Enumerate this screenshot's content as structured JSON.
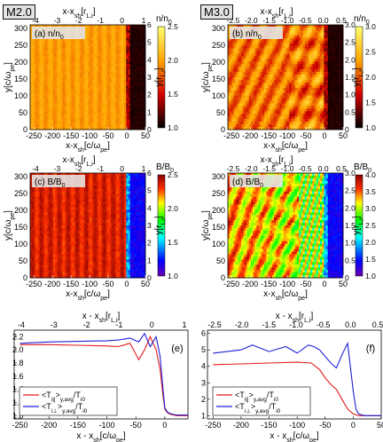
{
  "run_labels": [
    "M2.0",
    "M3.0"
  ],
  "map_axes": {
    "x_label_pe": "x-x",
    "x_label_pe_sub": "sh",
    "x_label_pe_unit": "[c/ω",
    "x_label_pe_unit_sub": "pe",
    "x_label_pe_close": "]",
    "x_label_Li": "x-x",
    "x_label_Li_sub": "sh",
    "x_label_Li_unit": "[r",
    "x_label_Li_unit_sub": "L,i",
    "x_label_Li_close": "]",
    "y_label_pe": "y[c/ω",
    "y_label_pe_sub": "pe",
    "y_label_pe_close": "]",
    "y_label_Li": "y[r",
    "y_label_Li_sub": "L,i",
    "y_label_Li_close": "]",
    "y_ticks_pe": [
      "0",
      "50",
      "100",
      "150",
      "200",
      "250",
      "300"
    ],
    "x_ticks_pe": [
      "-250",
      "-200",
      "-150",
      "-100",
      "-50",
      "0",
      "50"
    ]
  },
  "chart_data": [
    {
      "type": "heatmap",
      "panel": "(a) n/n",
      "panel_sub": "0",
      "colorbar_label": "n/n",
      "colorbar_sub": "0",
      "colorbar_ticks": [
        "1.0",
        "1.5",
        "2.0",
        "2.5"
      ],
      "colorbar_range": [
        1.0,
        2.5
      ],
      "x_range": [
        -260,
        50
      ],
      "y_range": [
        0,
        310
      ],
      "top_ticks": [
        "-4",
        "-3",
        "-2",
        "-1",
        "0",
        "1"
      ],
      "right_ticks": [
        "0",
        "1",
        "2",
        "3",
        "4",
        "5",
        "6"
      ],
      "colormap": "hot"
    },
    {
      "type": "heatmap",
      "panel": "(b) n/n",
      "panel_sub": "0",
      "colorbar_label": "n/n",
      "colorbar_sub": "0",
      "colorbar_ticks": [
        "1.0",
        "1.5",
        "2.0",
        "2.5",
        "3.0"
      ],
      "colorbar_range": [
        1.0,
        3.0
      ],
      "x_range": [
        -260,
        50
      ],
      "y_range": [
        0,
        310
      ],
      "top_ticks": [
        "-2.5",
        "-2.0",
        "-1.5",
        "-1.0",
        "-0.5",
        "0.0",
        "0.5"
      ],
      "right_ticks": [
        "0",
        "0.5",
        "1.0",
        "1.5",
        "2.0",
        "2.5",
        "3.0"
      ],
      "colormap": "hot"
    },
    {
      "type": "heatmap",
      "panel": "(c) B/B",
      "panel_sub": "0",
      "colorbar_label": "B/B",
      "colorbar_sub": "0",
      "colorbar_ticks": [
        "1.0",
        "1.5",
        "2.0",
        "2.5"
      ],
      "colorbar_range": [
        1.0,
        2.5
      ],
      "x_range": [
        -260,
        50
      ],
      "y_range": [
        0,
        310
      ],
      "top_ticks": [
        "-4",
        "-3",
        "-2",
        "-1",
        "0",
        "1"
      ],
      "right_ticks": [
        "0",
        "1",
        "2",
        "3",
        "4",
        "5",
        "6"
      ],
      "colormap": "jet"
    },
    {
      "type": "heatmap",
      "panel": "(d) B/B",
      "panel_sub": "0",
      "colorbar_label": "B/B",
      "colorbar_sub": "0",
      "colorbar_ticks": [
        "1.0",
        "1.5",
        "2.0",
        "2.5",
        "3.0",
        "3.5",
        "4.0"
      ],
      "colorbar_range": [
        1.0,
        4.0
      ],
      "x_range": [
        -260,
        50
      ],
      "y_range": [
        0,
        310
      ],
      "top_ticks": [
        "-2.5",
        "-2.0",
        "-1.5",
        "-1.0",
        "-0.5",
        "0.0",
        "0.5"
      ],
      "right_ticks": [
        "0",
        "0.5",
        "1.0",
        "1.5",
        "2.0",
        "2.5",
        "3.0"
      ],
      "colormap": "jet"
    },
    {
      "type": "line",
      "panel": "(e)",
      "xlabel": "x - x",
      "xlabel_sub": "sh",
      "xlabel_unit": "[c/ω",
      "xlabel_unit_sub": "pe",
      "xlabel_close": "]",
      "top_label": "x - x",
      "top_sub": "sh",
      "top_unit": "[r",
      "top_unit_sub": "L,i",
      "top_close": "]",
      "xlim": [
        -260,
        40
      ],
      "ylim": [
        0.95,
        2.3
      ],
      "x_ticks": [
        "-250",
        "-200",
        "-150",
        "-100",
        "-50",
        "0",
        "50"
      ],
      "y_ticks": [
        "1.0",
        "1.2",
        "1.4",
        "1.6",
        "1.8",
        "2.0",
        "2.2"
      ],
      "top_ticks": [
        "-4",
        "-3",
        "-2",
        "-1",
        "0",
        "1"
      ],
      "legend_position": "bottom-left",
      "series": [
        {
          "name": "<T",
          "sub": "i||",
          "name_tail": ">",
          "sub2": "y,avg",
          "tail": "/T",
          "sub3": "i0",
          "color": "#e31a1c",
          "x": [
            -250,
            -200,
            -150,
            -100,
            -80,
            -60,
            -45,
            -35,
            -25,
            -15,
            -8,
            -3,
            0,
            5,
            10,
            20,
            40
          ],
          "y": [
            2.08,
            2.08,
            2.07,
            2.06,
            2.05,
            2.1,
            1.85,
            2.0,
            2.2,
            2.0,
            1.7,
            1.3,
            1.1,
            1.04,
            1.02,
            1.0,
            1.0
          ]
        },
        {
          "name": "<T",
          "sub": "i⊥",
          "name_tail": ">",
          "sub2": "y,avg",
          "tail": "/T",
          "sub3": "i0",
          "color": "#1f1fd6",
          "x": [
            -250,
            -200,
            -150,
            -100,
            -80,
            -60,
            -45,
            -35,
            -25,
            -15,
            -8,
            -3,
            0,
            5,
            10,
            20,
            40
          ],
          "y": [
            2.1,
            2.12,
            2.13,
            2.14,
            2.15,
            2.18,
            2.12,
            2.25,
            2.05,
            2.2,
            1.9,
            1.4,
            1.12,
            1.05,
            1.03,
            1.01,
            1.01
          ]
        }
      ]
    },
    {
      "type": "line",
      "panel": "(f)",
      "xlabel": "x - x",
      "xlabel_sub": "sh",
      "xlabel_unit": "[c/ω",
      "xlabel_unit_sub": "pe",
      "xlabel_close": "]",
      "top_label": "x - x",
      "top_sub": "sh",
      "top_unit": "[r",
      "top_unit_sub": "L,i",
      "top_close": "]",
      "xlim": [
        -260,
        50
      ],
      "ylim": [
        0.8,
        6.2
      ],
      "x_ticks": [
        "-250",
        "-200",
        "-150",
        "-100",
        "-50",
        "0",
        "50"
      ],
      "y_ticks": [
        "1",
        "2",
        "3",
        "4",
        "5",
        "6"
      ],
      "top_ticks": [
        "-2.5",
        "-2.0",
        "-1.5",
        "-1.0",
        "-0.5",
        "0.0",
        "0.5"
      ],
      "legend_position": "bottom-left",
      "series": [
        {
          "name": "<T",
          "sub": "i||",
          "name_tail": ">",
          "sub2": "y,avg",
          "tail": "/T",
          "sub3": "i0",
          "color": "#e31a1c",
          "x": [
            -250,
            -200,
            -150,
            -100,
            -75,
            -60,
            -50,
            -40,
            -30,
            -20,
            -10,
            0,
            10,
            20,
            50
          ],
          "y": [
            4.1,
            4.15,
            4.2,
            4.25,
            4.2,
            3.8,
            3.3,
            2.9,
            2.6,
            2.0,
            1.4,
            1.1,
            1.0,
            1.0,
            1.0
          ]
        },
        {
          "name": "<T",
          "sub": "i⊥",
          "name_tail": ">",
          "sub2": "y,avg",
          "tail": "/T",
          "sub3": "i0",
          "color": "#1f1fd6",
          "x": [
            -250,
            -200,
            -180,
            -150,
            -120,
            -100,
            -80,
            -70,
            -60,
            -50,
            -40,
            -30,
            -20,
            -10,
            0,
            5,
            10,
            20,
            50
          ],
          "y": [
            4.8,
            5.0,
            5.3,
            4.9,
            5.2,
            4.8,
            5.3,
            5.2,
            5.0,
            4.6,
            4.2,
            3.9,
            4.7,
            5.4,
            2.5,
            1.4,
            1.1,
            1.0,
            1.0
          ]
        }
      ]
    }
  ]
}
